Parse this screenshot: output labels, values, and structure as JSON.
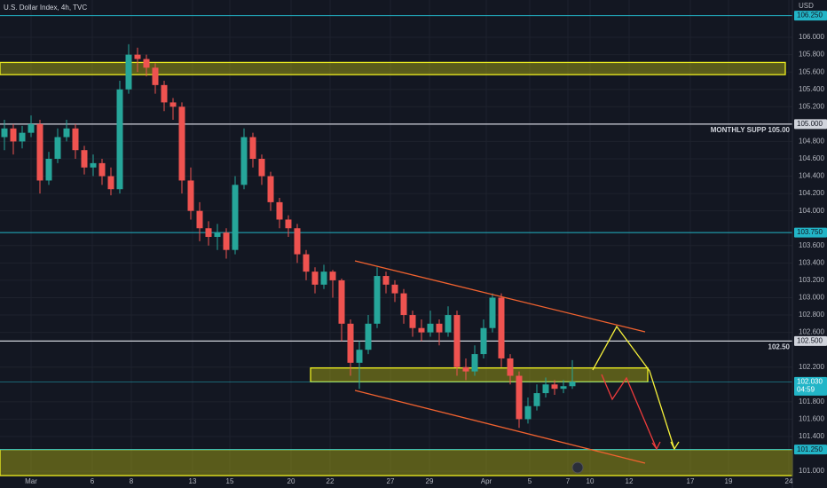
{
  "chart_data": {
    "type": "candlestick",
    "title": "U.S. Dollar Index, 4h, TVC",
    "currency": "USD",
    "up_color": "#26a69a",
    "down_color": "#ef5350",
    "x": [
      0,
      1,
      2,
      3,
      4,
      5,
      6,
      7,
      8,
      9,
      10,
      11,
      12,
      13,
      14,
      15,
      16,
      17,
      18,
      19,
      20,
      21,
      22,
      23,
      24,
      25,
      26,
      27,
      28,
      29,
      30,
      31,
      32,
      33,
      34,
      35,
      36,
      37,
      38,
      39,
      40,
      41,
      42,
      43,
      44,
      45,
      46,
      47,
      48,
      49,
      50,
      51,
      52,
      53,
      54,
      55,
      56,
      57,
      58,
      59,
      60,
      61,
      62,
      63,
      64
    ],
    "open": [
      104.85,
      104.95,
      104.8,
      104.9,
      105.0,
      104.35,
      104.6,
      104.85,
      104.95,
      104.7,
      104.5,
      104.55,
      104.4,
      104.25,
      105.4,
      105.8,
      105.75,
      105.65,
      105.45,
      105.25,
      105.2,
      104.35,
      104.0,
      103.8,
      103.7,
      103.75,
      103.55,
      104.3,
      104.85,
      104.6,
      104.4,
      104.1,
      103.9,
      103.8,
      103.5,
      103.3,
      103.15,
      103.3,
      103.2,
      102.7,
      102.25,
      102.4,
      102.7,
      103.25,
      103.15,
      103.05,
      102.8,
      102.65,
      102.6,
      102.7,
      102.6,
      102.8,
      102.2,
      102.15,
      102.35,
      102.65,
      103.0,
      102.3,
      102.1,
      101.6,
      101.75,
      101.9,
      102.0,
      101.95,
      101.98
    ],
    "high": [
      105.05,
      105.0,
      104.98,
      105.1,
      105.05,
      104.68,
      104.95,
      105.05,
      105.0,
      104.75,
      104.65,
      104.6,
      104.5,
      105.5,
      105.92,
      105.88,
      105.8,
      105.7,
      105.5,
      105.3,
      105.25,
      104.5,
      104.1,
      103.88,
      103.85,
      103.8,
      104.4,
      104.95,
      104.9,
      104.65,
      104.45,
      104.15,
      103.95,
      103.85,
      103.55,
      103.35,
      103.38,
      103.32,
      103.22,
      102.75,
      102.5,
      102.8,
      103.35,
      103.3,
      103.2,
      103.1,
      102.85,
      102.75,
      102.85,
      102.75,
      102.9,
      102.85,
      102.3,
      102.45,
      102.75,
      103.05,
      103.05,
      102.35,
      102.15,
      101.85,
      102.0,
      102.08,
      102.05,
      102.05,
      102.28
    ],
    "low": [
      104.7,
      104.65,
      104.72,
      104.85,
      104.2,
      104.3,
      104.55,
      104.8,
      104.6,
      104.42,
      104.4,
      104.3,
      104.18,
      104.2,
      105.35,
      105.6,
      105.55,
      105.35,
      105.15,
      105.05,
      104.2,
      103.9,
      103.65,
      103.6,
      103.55,
      103.45,
      103.5,
      104.25,
      104.5,
      104.3,
      104.0,
      103.8,
      103.7,
      103.4,
      103.2,
      103.05,
      103.1,
      103.0,
      102.5,
      102.1,
      101.95,
      102.35,
      102.65,
      103.05,
      102.95,
      102.7,
      102.55,
      102.5,
      102.55,
      102.45,
      102.55,
      102.1,
      102.05,
      102.1,
      102.3,
      102.6,
      102.2,
      102.0,
      101.5,
      101.55,
      101.7,
      101.85,
      101.88,
      101.9,
      101.95
    ],
    "close": [
      104.95,
      104.8,
      104.9,
      105.0,
      104.35,
      104.6,
      104.85,
      104.95,
      104.7,
      104.5,
      104.55,
      104.4,
      104.25,
      105.4,
      105.8,
      105.75,
      105.65,
      105.45,
      105.25,
      105.2,
      104.35,
      104.0,
      103.8,
      103.7,
      103.75,
      103.55,
      104.3,
      104.85,
      104.6,
      104.4,
      104.1,
      103.9,
      103.8,
      103.5,
      103.3,
      103.15,
      103.3,
      103.2,
      102.7,
      102.25,
      102.4,
      102.7,
      103.25,
      103.15,
      103.05,
      102.8,
      102.65,
      102.6,
      102.7,
      102.6,
      102.8,
      102.2,
      102.15,
      102.35,
      102.65,
      103.0,
      102.3,
      102.1,
      101.6,
      101.75,
      101.9,
      102.0,
      101.95,
      101.98,
      102.03
    ],
    "xlim": [
      -0.5,
      88.8
    ],
    "xticks": [
      {
        "value": 3,
        "label": "Mar"
      },
      9.9,
      14.3,
      21.2,
      25.4,
      32.3,
      36.7,
      43.5,
      47.9,
      {
        "value": 54.3,
        "label": "Apr"
      },
      59.2,
      63.5,
      66,
      70.4,
      77.3,
      81.6,
      88.4
    ],
    "xtick_labels": [
      "Mar",
      "6",
      "8",
      "13",
      "15",
      "20",
      "22",
      "27",
      "29",
      "Apr",
      "5",
      "7",
      "10",
      "12",
      "17",
      "19",
      "24"
    ],
    "ylim": [
      100.95,
      106.43
    ],
    "yticks": [
      {
        "value": 106,
        "label": "106.000"
      },
      {
        "value": 105.8,
        "label": "105.800"
      },
      {
        "value": 105.6,
        "label": "105.600"
      },
      {
        "value": 105.4,
        "label": "105.400"
      },
      {
        "value": 105.2,
        "label": "105.200"
      },
      {
        "value": 104.8,
        "label": "104.800"
      },
      {
        "value": 104.6,
        "label": "104.600"
      },
      {
        "value": 104.4,
        "label": "104.400"
      },
      {
        "value": 104.2,
        "label": "104.200"
      },
      {
        "value": 104,
        "label": "104.000"
      },
      {
        "value": 103.6,
        "label": "103.600"
      },
      {
        "value": 103.4,
        "label": "103.400"
      },
      {
        "value": 103.2,
        "label": "103.200"
      },
      {
        "value": 103,
        "label": "103.000"
      },
      {
        "value": 102.8,
        "label": "102.800"
      },
      {
        "value": 102.6,
        "label": "102.600"
      },
      {
        "value": 102.2,
        "label": "102.200"
      },
      {
        "value": 101.8,
        "label": "101.800"
      },
      {
        "value": 101.6,
        "label": "101.600"
      },
      {
        "value": 101.4,
        "label": "101.400"
      },
      {
        "value": 101,
        "label": "101.000"
      }
    ],
    "grid": true,
    "levels": [
      {
        "value": 106.25,
        "label": "106.250",
        "color": "#22b5c7"
      },
      {
        "value": 105.0,
        "label": "105.000",
        "color": "#d1d4dc",
        "note": "MONTHLY SUPP 105.00"
      },
      {
        "value": 103.75,
        "label": "103.750",
        "color": "#22b5c7"
      },
      {
        "value": 102.5,
        "label": "102.500",
        "color": "#d1d4dc",
        "note": "102.50"
      },
      {
        "value": 101.25,
        "label": "101.250",
        "color": "#22b5c7"
      }
    ],
    "last": {
      "value": 102.03,
      "label": "102.030",
      "countdown": "04:59",
      "color": "#22b5c7"
    },
    "zones": [
      {
        "low": 105.57,
        "high": 105.71
      },
      {
        "low": 102.03,
        "high": 102.19
      },
      {
        "low": 100.95,
        "high": 101.25
      }
    ]
  }
}
